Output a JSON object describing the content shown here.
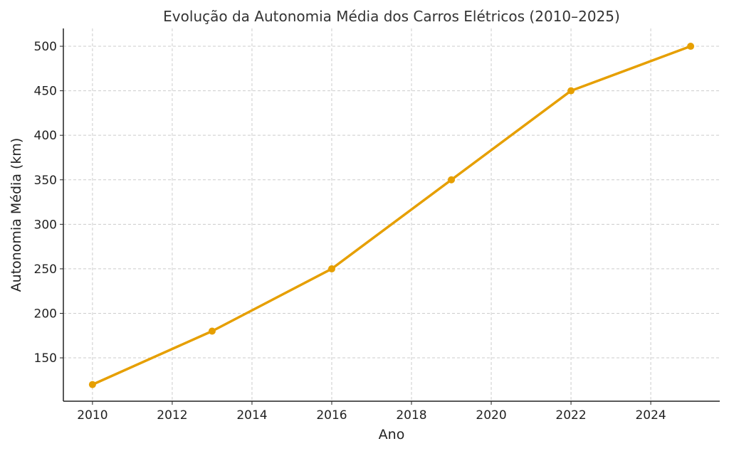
{
  "chart_data": {
    "type": "line",
    "title": "Evolução da Autonomia Média dos Carros Elétricos (2010–2025)",
    "xlabel": "Ano",
    "ylabel": "Autonomia Média (km)",
    "x": [
      2010,
      2013,
      2016,
      2019,
      2022,
      2025
    ],
    "series": [
      {
        "values": [
          120,
          180,
          250,
          350,
          450,
          500
        ],
        "color": "#E69F00",
        "marker": "circle"
      }
    ],
    "xticks": [
      2010,
      2012,
      2014,
      2016,
      2018,
      2020,
      2022,
      2024
    ],
    "yticks": [
      150,
      200,
      250,
      300,
      350,
      400,
      450,
      500
    ],
    "xlim": [
      2009.27,
      2025.73
    ],
    "ylim": [
      101.3,
      520
    ],
    "grid": true
  }
}
